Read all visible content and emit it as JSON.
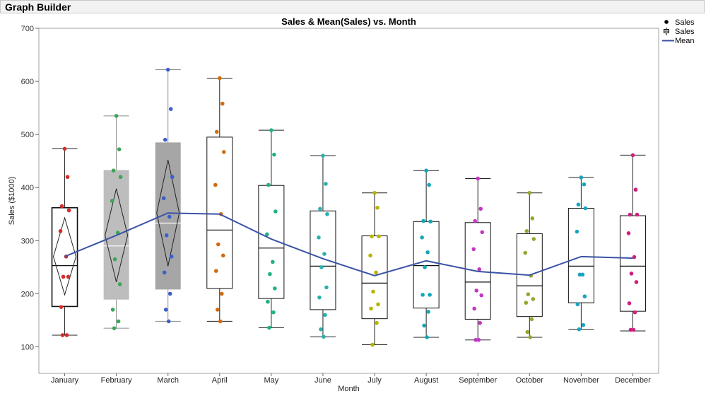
{
  "window": {
    "title": "Graph Builder"
  },
  "legend": {
    "items": [
      {
        "label": "Sales",
        "symbol": "dot"
      },
      {
        "label": "Sales",
        "symbol": "box"
      },
      {
        "label": "Mean",
        "symbol": "line"
      }
    ]
  },
  "chart_data": {
    "type": "box",
    "title": "Sales & Mean(Sales) vs. Month",
    "xlabel": "Month",
    "ylabel": "Sales ($1000)",
    "ylim": [
      50,
      700
    ],
    "yticks": [
      100,
      200,
      300,
      400,
      500,
      600,
      700
    ],
    "categories": [
      "January",
      "February",
      "March",
      "April",
      "May",
      "June",
      "July",
      "August",
      "September",
      "October",
      "November",
      "December"
    ],
    "box_fill": [
      "none",
      "#bdbdbd",
      "#a6a6a6",
      "none",
      "none",
      "none",
      "none",
      "none",
      "none",
      "none",
      "none",
      "none"
    ],
    "boxes": [
      {
        "min": 122,
        "q1": 176,
        "median": 253,
        "q3": 362,
        "max": 473
      },
      {
        "min": 135,
        "q1": 189,
        "median": 290,
        "q3": 433,
        "max": 535
      },
      {
        "min": 148,
        "q1": 208,
        "median": 333,
        "q3": 485,
        "max": 622
      },
      {
        "min": 148,
        "q1": 210,
        "median": 320,
        "q3": 495,
        "max": 606
      },
      {
        "min": 136,
        "q1": 191,
        "median": 286,
        "q3": 404,
        "max": 508
      },
      {
        "min": 119,
        "q1": 170,
        "median": 252,
        "q3": 356,
        "max": 460
      },
      {
        "min": 104,
        "q1": 153,
        "median": 220,
        "q3": 309,
        "max": 390
      },
      {
        "min": 118,
        "q1": 173,
        "median": 253,
        "q3": 336,
        "max": 432
      },
      {
        "min": 113,
        "q1": 152,
        "median": 222,
        "q3": 334,
        "max": 417
      },
      {
        "min": 118,
        "q1": 157,
        "median": 215,
        "q3": 313,
        "max": 390
      },
      {
        "min": 133,
        "q1": 183,
        "median": 252,
        "q3": 361,
        "max": 419
      },
      {
        "min": 130,
        "q1": 167,
        "median": 252,
        "q3": 347,
        "max": 461
      }
    ],
    "diamonds": [
      {
        "mean": 270,
        "lower": 198,
        "upper": 343
      },
      {
        "mean": 310,
        "lower": 222,
        "upper": 398
      },
      {
        "mean": 352,
        "lower": 252,
        "upper": 452
      }
    ],
    "series": [
      {
        "name": "Mean",
        "color": "#3a53a4",
        "values": [
          270,
          310,
          352,
          350,
          303,
          266,
          234,
          262,
          242,
          235,
          270,
          267
        ]
      }
    ],
    "point_colors": [
      "#d32c2c",
      "#3ca655",
      "#3a5fcd",
      "#d06b10",
      "#1fb185",
      "#2bb0b0",
      "#b9b400",
      "#12a7b7",
      "#c237c2",
      "#8fa82e",
      "#1aa3bf",
      "#cf1f7f"
    ],
    "points": [
      [
        473,
        420,
        365,
        357,
        318,
        270,
        232,
        232,
        175,
        122,
        122
      ],
      [
        535,
        472,
        432,
        420,
        375,
        315,
        265,
        218,
        170,
        148,
        135
      ],
      [
        622,
        548,
        490,
        420,
        380,
        345,
        310,
        270,
        240,
        200,
        170,
        148
      ],
      [
        606,
        558,
        505,
        467,
        405,
        350,
        293,
        272,
        243,
        200,
        170,
        148
      ],
      [
        508,
        462,
        405,
        355,
        312,
        260,
        237,
        210,
        185,
        165,
        136
      ],
      [
        460,
        407,
        360,
        350,
        306,
        275,
        250,
        212,
        193,
        160,
        133,
        119
      ],
      [
        390,
        362,
        308,
        308,
        272,
        240,
        204,
        180,
        172,
        145,
        104
      ],
      [
        432,
        405,
        337,
        336,
        306,
        278,
        250,
        198,
        198,
        166,
        140,
        118
      ],
      [
        417,
        360,
        337,
        316,
        284,
        246,
        206,
        197,
        172,
        145,
        113,
        113
      ],
      [
        390,
        342,
        318,
        303,
        277,
        234,
        199,
        190,
        183,
        152,
        128,
        118
      ],
      [
        419,
        406,
        368,
        361,
        317,
        236,
        236,
        195,
        180,
        141,
        133
      ],
      [
        461,
        396,
        349,
        349,
        314,
        269,
        238,
        222,
        182,
        165,
        132,
        132
      ]
    ]
  }
}
